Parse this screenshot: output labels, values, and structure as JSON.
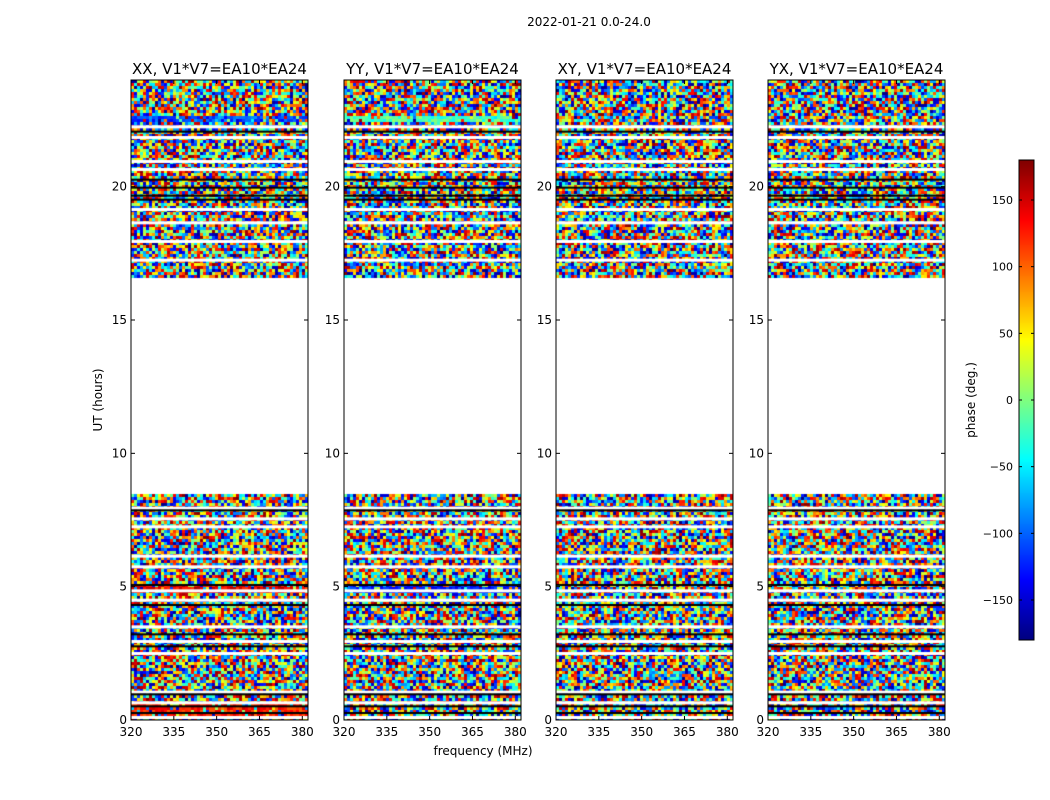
{
  "chart_data": {
    "type": "heatmap",
    "suptitle": "2022-01-21 0.0-24.0",
    "xlabel": "frequency (MHz)",
    "ylabel": "UT (hours)",
    "xlim": [
      320,
      382
    ],
    "ylim": [
      0,
      24
    ],
    "xticks": [
      "320",
      "335",
      "350",
      "365",
      "380"
    ],
    "yticks": [
      "0",
      "5",
      "10",
      "15",
      "20"
    ],
    "colorbar": {
      "label": "phase (deg.)",
      "range": [
        -180,
        180
      ],
      "ticks": [
        "150",
        "100",
        "50",
        "0",
        "−50",
        "−100",
        "−150"
      ],
      "colormap": "jet"
    },
    "panels": [
      {
        "title": "XX, V1*V7=EA10*EA24"
      },
      {
        "title": "YY, V1*V7=EA10*EA24"
      },
      {
        "title": "XY, V1*V7=EA10*EA24"
      },
      {
        "title": "YX, V1*V7=EA10*EA24"
      }
    ],
    "data_gaps_ut_hours": [
      [
        8.5,
        16.6
      ]
    ],
    "note_values": "Per-pixel phase values are noise-like and not individually recoverable; rendered as a synthetic noisy phase field."
  }
}
